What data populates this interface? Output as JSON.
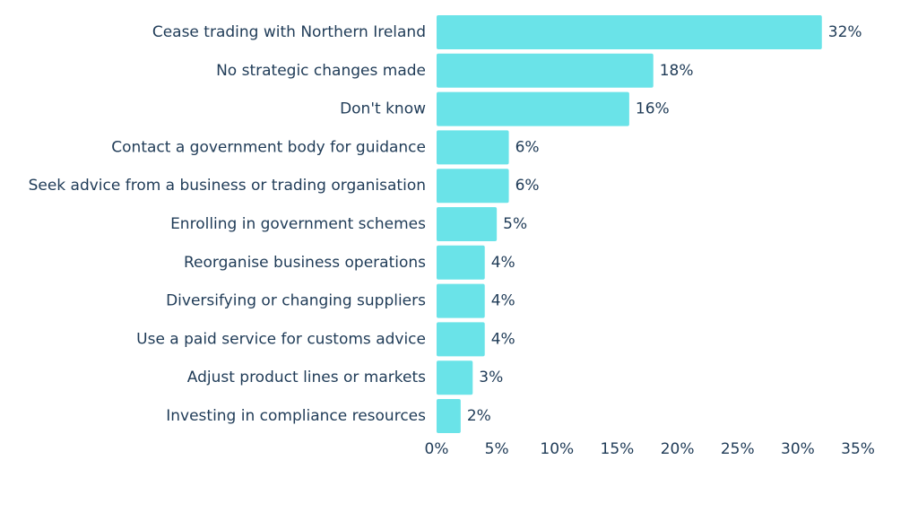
{
  "chart_data": {
    "type": "bar",
    "orientation": "horizontal",
    "categories": [
      "Cease trading with Northern Ireland",
      "No strategic changes made",
      "Don't know",
      "Contact a government body for guidance",
      "Seek advice from a business or trading organisation",
      "Enrolling in government schemes",
      "Reorganise business operations",
      "Diversifying or changing suppliers",
      "Use a paid service for customs advice",
      "Adjust product lines or markets",
      "Investing in compliance resources"
    ],
    "values": [
      32,
      18,
      16,
      6,
      6,
      5,
      4,
      4,
      4,
      3,
      2
    ],
    "value_labels": [
      "32%",
      "18%",
      "16%",
      "6%",
      "6%",
      "5%",
      "4%",
      "4%",
      "4%",
      "3%",
      "2%"
    ],
    "xlim": [
      0,
      35
    ],
    "x_ticks": [
      0,
      5,
      10,
      15,
      20,
      25,
      30,
      35
    ],
    "x_tick_labels": [
      "0%",
      "5%",
      "10%",
      "15%",
      "20%",
      "25%",
      "30%",
      "35%"
    ],
    "title": "",
    "xlabel": "",
    "ylabel": "",
    "grid": false,
    "legend": "none",
    "bar_color": "#6ae3e8",
    "text_color": "#1f3b57"
  }
}
